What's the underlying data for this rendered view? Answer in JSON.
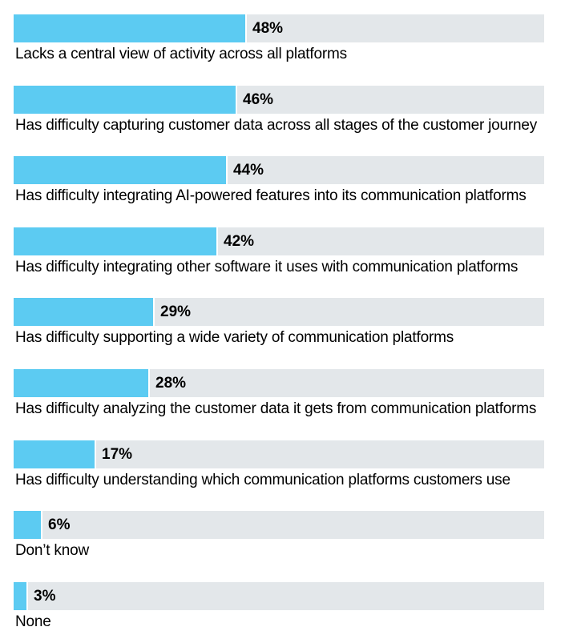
{
  "chart_data": {
    "type": "bar",
    "orientation": "horizontal",
    "title": "",
    "xlabel": "",
    "ylabel": "",
    "xlim": [
      0,
      100
    ],
    "grid": false,
    "legend": "none",
    "bar_color": "#5ccbf2",
    "track_color": "#e3e7ea",
    "categories": [
      "Lacks a central view of activity across all platforms",
      "Has difficulty capturing customer data across all stages of the customer journey",
      "Has difficulty integrating AI-powered features into its communication platforms",
      "Has difficulty integrating other software it uses with communication platforms",
      "Has difficulty supporting a wide variety of communication platforms",
      "Has difficulty analyzing the customer data it gets from communication platforms",
      "Has difficulty understanding which communication platforms customers use",
      "Don’t know",
      "None"
    ],
    "values": [
      48,
      46,
      44,
      42,
      29,
      28,
      17,
      6,
      3
    ],
    "value_labels": [
      "48%",
      "46%",
      "44%",
      "42%",
      "29%",
      "28%",
      "17%",
      "6%",
      "3%"
    ]
  }
}
